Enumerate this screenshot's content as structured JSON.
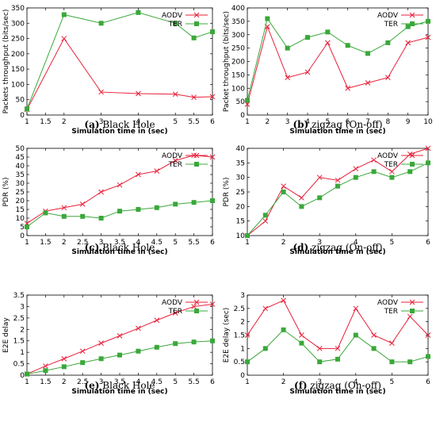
{
  "colors": {
    "aodv": "#e8203a",
    "ter": "#3aa83a",
    "frame": "#000000"
  },
  "chart_data": [
    {
      "type": "line",
      "caption_label": "(a)",
      "caption_text": "Black Hole",
      "xlabel": "Simulation time in (sec)",
      "ylabel": "Packets throughput (bits/sec)",
      "xlim": [
        1,
        6
      ],
      "ylim": [
        0,
        350
      ],
      "xticks": [
        1,
        1.5,
        2,
        3,
        4,
        5,
        5.5,
        6
      ],
      "xtick_labels": [
        "1",
        "1.5",
        "2",
        "3",
        "4",
        "5",
        "5.5",
        "6"
      ],
      "xtick_pos": [
        1,
        1.5,
        2,
        3,
        4,
        5,
        5.5,
        6
      ],
      "yticks": [
        0,
        50,
        100,
        150,
        200,
        250,
        300,
        350
      ],
      "legend_position": "top-right",
      "series": [
        {
          "name": "AODV",
          "marker": "x",
          "x": [
            1,
            2,
            3,
            4,
            5,
            5.5,
            6
          ],
          "y": [
            18,
            250,
            75,
            70,
            68,
            58,
            60
          ]
        },
        {
          "name": "TER",
          "marker": "square",
          "x": [
            1,
            2,
            3,
            4,
            5,
            5.5,
            6
          ],
          "y": [
            20,
            328,
            300,
            335,
            300,
            252,
            272
          ]
        }
      ]
    },
    {
      "type": "line",
      "caption_label": "(b)",
      "caption_text": "zigzag (On-off)",
      "xlabel": "Simulation time in (sec)",
      "ylabel": "Packet throughput (bits/sec)",
      "xlim": [
        1,
        10
      ],
      "ylim": [
        0,
        400
      ],
      "xticks": [
        1,
        2,
        3,
        4,
        5,
        6,
        7,
        8,
        9,
        10
      ],
      "xtick_labels": [
        "1",
        "2",
        "3",
        "4",
        "5",
        "6",
        "7",
        "8",
        "9",
        "10"
      ],
      "xtick_pos": [
        1,
        2,
        3,
        4,
        5,
        6,
        7,
        8,
        9,
        10
      ],
      "yticks": [
        0,
        50,
        100,
        150,
        200,
        250,
        300,
        350,
        400
      ],
      "legend_position": "top-right",
      "series": [
        {
          "name": "AODV",
          "marker": "x",
          "x": [
            1,
            2,
            3,
            4,
            5,
            6,
            7,
            8,
            9,
            10
          ],
          "y": [
            40,
            330,
            140,
            160,
            270,
            100,
            120,
            140,
            270,
            290
          ]
        },
        {
          "name": "TER",
          "marker": "square",
          "x": [
            1,
            2,
            3,
            4,
            5,
            6,
            7,
            8,
            9,
            10
          ],
          "y": [
            55,
            360,
            250,
            290,
            310,
            260,
            230,
            270,
            330,
            350
          ]
        }
      ]
    },
    {
      "type": "line",
      "caption_label": "(c)",
      "caption_text": "Black Hole",
      "xlabel": "Simulation time in (sec)",
      "ylabel": "PDR (%)",
      "xlim": [
        1,
        6
      ],
      "ylim": [
        0,
        50
      ],
      "xticks": [
        1,
        1.5,
        2,
        2.5,
        3,
        3.5,
        4,
        4.5,
        5,
        5.5,
        6
      ],
      "xtick_labels": [
        "1",
        "1.5",
        "2",
        "2.5",
        "3",
        "3.5",
        "4",
        "4.5",
        "5",
        "5.5",
        "6"
      ],
      "xtick_pos": [
        1,
        1.5,
        2,
        2.5,
        3,
        3.5,
        4,
        4.5,
        5,
        5.5,
        6
      ],
      "yticks": [
        0,
        5,
        10,
        15,
        20,
        25,
        30,
        35,
        40,
        45,
        50
      ],
      "legend_position": "top-right",
      "series": [
        {
          "name": "AODV",
          "marker": "x",
          "x": [
            1,
            1.5,
            2,
            2.5,
            3,
            3.5,
            4,
            4.5,
            5,
            5.5,
            6
          ],
          "y": [
            7,
            14,
            16,
            18,
            25,
            29,
            35,
            37,
            43,
            46,
            45
          ]
        },
        {
          "name": "TER",
          "marker": "square",
          "x": [
            1,
            1.5,
            2,
            2.5,
            3,
            3.5,
            4,
            4.5,
            5,
            5.5,
            6
          ],
          "y": [
            5,
            13,
            11,
            11,
            10,
            14,
            15,
            16,
            18,
            19,
            20
          ]
        }
      ]
    },
    {
      "type": "line",
      "caption_label": "(d)",
      "caption_text": "zigzag (On-off)",
      "xlabel": "Simulation time in (sec)",
      "ylabel": "PDR (%)",
      "xlim": [
        1,
        6
      ],
      "ylim": [
        10,
        40
      ],
      "xticks": [
        1,
        2,
        3,
        4,
        5,
        6
      ],
      "xtick_labels": [
        "1",
        "2",
        "3",
        "4",
        "5",
        "6"
      ],
      "xtick_pos": [
        1,
        2,
        3,
        4,
        5,
        6
      ],
      "yticks": [
        10,
        15,
        20,
        25,
        30,
        35,
        40
      ],
      "legend_position": "top-right",
      "series": [
        {
          "name": "AODV",
          "marker": "x",
          "x": [
            1,
            1.5,
            2,
            2.5,
            3,
            3.5,
            4,
            4.5,
            5,
            5.5,
            6
          ],
          "y": [
            10,
            15,
            27,
            23,
            30,
            29,
            33,
            36,
            32,
            38,
            40
          ]
        },
        {
          "name": "TER",
          "marker": "square",
          "x": [
            1,
            1.5,
            2,
            2.5,
            3,
            3.5,
            4,
            4.5,
            5,
            5.5,
            6
          ],
          "y": [
            10,
            17,
            25,
            20,
            23,
            27,
            30,
            32,
            30,
            32,
            35
          ]
        }
      ]
    },
    {
      "type": "line",
      "caption_label": "(e)",
      "caption_text": "Black Hole",
      "xlabel": "Simulation time in (sec)",
      "ylabel": "E2E delay",
      "xlim": [
        1,
        6
      ],
      "ylim": [
        0,
        3.5
      ],
      "xticks": [
        1,
        1.5,
        2,
        2.5,
        3,
        3.5,
        4,
        4.5,
        5,
        5.5,
        6
      ],
      "xtick_labels": [
        "1",
        "1.5",
        "2",
        "2.5",
        "3",
        "3.5",
        "4",
        "4.5",
        "5",
        "5.5",
        "6"
      ],
      "xtick_pos": [
        1,
        1.5,
        2,
        2.5,
        3,
        3.5,
        4,
        4.5,
        5,
        5.5,
        6
      ],
      "yticks": [
        0,
        0.5,
        1,
        1.5,
        2,
        2.5,
        3,
        3.5
      ],
      "ytick_labels": [
        "0",
        "0.5",
        "1",
        "1.5",
        "2",
        "2.5",
        "3",
        "3.5"
      ],
      "legend_position": "top-right",
      "series": [
        {
          "name": "AODV",
          "marker": "x",
          "x": [
            1,
            1.5,
            2,
            2.5,
            3,
            3.5,
            4,
            4.5,
            5,
            5.5,
            6
          ],
          "y": [
            0.05,
            0.4,
            0.72,
            1.05,
            1.4,
            1.72,
            2.05,
            2.4,
            2.72,
            3.0,
            3.1
          ]
        },
        {
          "name": "TER",
          "marker": "square",
          "x": [
            1,
            1.5,
            2,
            2.5,
            3,
            3.5,
            4,
            4.5,
            5,
            5.5,
            6
          ],
          "y": [
            0.05,
            0.2,
            0.37,
            0.55,
            0.72,
            0.88,
            1.05,
            1.22,
            1.38,
            1.45,
            1.5
          ]
        }
      ]
    },
    {
      "type": "line",
      "caption_label": "(f)",
      "caption_text": "zigzag (On-off)",
      "xlabel": "Simulation time in (sec)",
      "ylabel": "E2E delay (sec)",
      "xlim": [
        1,
        6
      ],
      "ylim": [
        0,
        3
      ],
      "xticks": [
        1,
        2,
        3,
        4,
        5,
        6
      ],
      "xtick_labels": [
        "1",
        "2",
        "3",
        "4",
        "5",
        "6"
      ],
      "xtick_pos": [
        1,
        2,
        3,
        4,
        5,
        6
      ],
      "yticks": [
        0,
        0.5,
        1,
        1.5,
        2,
        2.5,
        3
      ],
      "ytick_labels": [
        "0",
        "0.5",
        "1",
        "1.5",
        "2",
        "2.5",
        "3"
      ],
      "legend_position": "top-right",
      "series": [
        {
          "name": "AODV",
          "marker": "x",
          "x": [
            1,
            1.5,
            2,
            2.5,
            3,
            3.5,
            4,
            4.5,
            5,
            5.5,
            6
          ],
          "y": [
            1.5,
            2.5,
            2.8,
            1.5,
            1.0,
            1.0,
            2.5,
            1.5,
            1.2,
            2.2,
            1.5
          ]
        },
        {
          "name": "TER",
          "marker": "square",
          "x": [
            1,
            1.5,
            2,
            2.5,
            3,
            3.5,
            4,
            4.5,
            5,
            5.5,
            6
          ],
          "y": [
            0.5,
            1.0,
            1.7,
            1.2,
            0.5,
            0.6,
            1.5,
            1.0,
            0.5,
            0.5,
            0.7
          ]
        }
      ]
    }
  ]
}
